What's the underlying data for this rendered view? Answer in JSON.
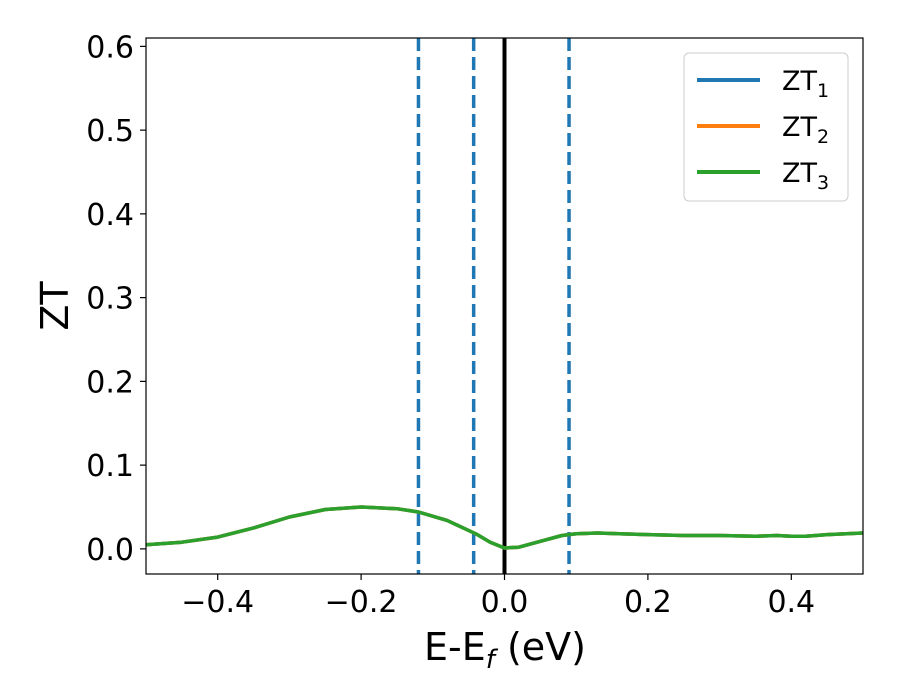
{
  "chart_data": {
    "type": "line",
    "title": "",
    "xlabel": "E-E",
    "xlabel_subscript": "f",
    "xlabel_unit": " (eV)",
    "ylabel": "ZT",
    "xlim": [
      -0.5,
      0.5
    ],
    "ylim": [
      -0.03,
      0.61
    ],
    "grid": false,
    "legend_position": "top-right",
    "x_ticks": [
      {
        "value": -0.4,
        "label": "−0.4"
      },
      {
        "value": -0.2,
        "label": "−0.2"
      },
      {
        "value": 0.0,
        "label": "0.0"
      },
      {
        "value": 0.2,
        "label": "0.2"
      },
      {
        "value": 0.4,
        "label": "0.4"
      }
    ],
    "y_ticks": [
      {
        "value": 0.0,
        "label": "0.0"
      },
      {
        "value": 0.1,
        "label": "0.1"
      },
      {
        "value": 0.2,
        "label": "0.2"
      },
      {
        "value": 0.3,
        "label": "0.3"
      },
      {
        "value": 0.4,
        "label": "0.4"
      },
      {
        "value": 0.5,
        "label": "0.5"
      },
      {
        "value": 0.6,
        "label": "0.6"
      }
    ],
    "x": [
      -0.5,
      -0.45,
      -0.4,
      -0.35,
      -0.3,
      -0.25,
      -0.2,
      -0.15,
      -0.12,
      -0.08,
      -0.04,
      -0.02,
      0.0,
      0.02,
      0.05,
      0.08,
      0.1,
      0.13,
      0.16,
      0.2,
      0.25,
      0.3,
      0.35,
      0.38,
      0.4,
      0.42,
      0.45,
      0.5
    ],
    "series": [
      {
        "name": "ZT",
        "name_subscript": "1",
        "color": "#1f77b4",
        "values": [
          0.005,
          0.008,
          0.014,
          0.025,
          0.038,
          0.047,
          0.05,
          0.048,
          0.044,
          0.034,
          0.018,
          0.008,
          0.001,
          0.002,
          0.009,
          0.016,
          0.018,
          0.019,
          0.018,
          0.017,
          0.016,
          0.016,
          0.015,
          0.016,
          0.015,
          0.015,
          0.017,
          0.019
        ]
      },
      {
        "name": "ZT",
        "name_subscript": "2",
        "color": "#ff7f0e",
        "values": [
          0.005,
          0.008,
          0.014,
          0.025,
          0.038,
          0.047,
          0.05,
          0.048,
          0.044,
          0.034,
          0.018,
          0.008,
          0.001,
          0.002,
          0.009,
          0.016,
          0.018,
          0.019,
          0.018,
          0.017,
          0.016,
          0.016,
          0.015,
          0.016,
          0.015,
          0.015,
          0.017,
          0.019
        ]
      },
      {
        "name": "ZT",
        "name_subscript": "3",
        "color": "#2ca02c",
        "values": [
          0.005,
          0.008,
          0.014,
          0.025,
          0.038,
          0.047,
          0.05,
          0.048,
          0.044,
          0.034,
          0.018,
          0.008,
          0.001,
          0.002,
          0.009,
          0.016,
          0.018,
          0.019,
          0.018,
          0.017,
          0.016,
          0.016,
          0.015,
          0.016,
          0.015,
          0.015,
          0.017,
          0.019
        ]
      }
    ],
    "vertical_lines": [
      {
        "x": -0.12,
        "style": "dashed",
        "color": "#1f77b4"
      },
      {
        "x": -0.043,
        "style": "dashed",
        "color": "#1f77b4"
      },
      {
        "x": 0.09,
        "style": "dashed",
        "color": "#1f77b4"
      },
      {
        "x": 0.0,
        "style": "solid",
        "color": "#000000"
      }
    ]
  }
}
